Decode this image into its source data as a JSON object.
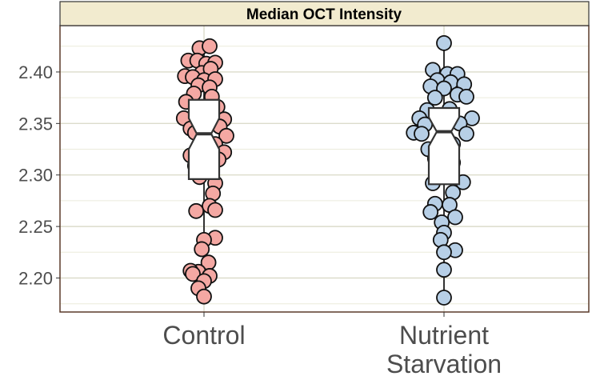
{
  "chart_data": {
    "type": "box_jitter",
    "title": "Median OCT Intensity",
    "xlabel": "",
    "ylabel": "",
    "ylim": [
      2.167,
      2.445
    ],
    "y_ticks": [
      2.2,
      2.25,
      2.3,
      2.35,
      2.4
    ],
    "y_tick_labels": [
      "2.20",
      "2.25",
      "2.30",
      "2.35",
      "2.40"
    ],
    "categories": [
      "Control",
      "Nutrient\nStarvation"
    ],
    "category_lines": [
      [
        "Control"
      ],
      [
        "Nutrient",
        "Starvation"
      ]
    ],
    "grid": true,
    "notched": true,
    "series": [
      {
        "name": "Control",
        "fill": "#f4a8a3",
        "box": {
          "q1": 2.296,
          "median": 2.34,
          "q3": 2.373,
          "whisker_low": 2.181,
          "whisker_high": 2.425,
          "notch_low": 2.325,
          "notch_high": 2.355
        },
        "points": [
          {
            "dx": -0.04,
            "y": 2.423
          },
          {
            "dx": 0.05,
            "y": 2.425
          },
          {
            "dx": -0.14,
            "y": 2.411
          },
          {
            "dx": -0.06,
            "y": 2.411
          },
          {
            "dx": 0.02,
            "y": 2.408
          },
          {
            "dx": 0.1,
            "y": 2.409
          },
          {
            "dx": -0.02,
            "y": 2.399
          },
          {
            "dx": 0.06,
            "y": 2.403
          },
          {
            "dx": -0.17,
            "y": 2.396
          },
          {
            "dx": -0.1,
            "y": 2.395
          },
          {
            "dx": 0.0,
            "y": 2.392
          },
          {
            "dx": 0.1,
            "y": 2.393
          },
          {
            "dx": -0.05,
            "y": 2.387
          },
          {
            "dx": 0.05,
            "y": 2.385
          },
          {
            "dx": -0.09,
            "y": 2.379
          },
          {
            "dx": 0.07,
            "y": 2.376
          },
          {
            "dx": -0.16,
            "y": 2.371
          },
          {
            "dx": 0.12,
            "y": 2.366
          },
          {
            "dx": -0.18,
            "y": 2.355
          },
          {
            "dx": 0.18,
            "y": 2.354
          },
          {
            "dx": -0.12,
            "y": 2.345
          },
          {
            "dx": 0.14,
            "y": 2.347
          },
          {
            "dx": -0.08,
            "y": 2.341
          },
          {
            "dx": 0.2,
            "y": 2.338
          },
          {
            "dx": 0.1,
            "y": 2.33
          },
          {
            "dx": 0.18,
            "y": 2.322
          },
          {
            "dx": -0.12,
            "y": 2.319
          },
          {
            "dx": 0.13,
            "y": 2.315
          },
          {
            "dx": -0.08,
            "y": 2.309
          },
          {
            "dx": -0.04,
            "y": 2.298
          },
          {
            "dx": 0.1,
            "y": 2.292
          },
          {
            "dx": 0.08,
            "y": 2.282
          },
          {
            "dx": 0.05,
            "y": 2.27
          },
          {
            "dx": -0.07,
            "y": 2.265
          },
          {
            "dx": 0.1,
            "y": 2.266
          },
          {
            "dx": 0.1,
            "y": 2.239
          },
          {
            "dx": 0.0,
            "y": 2.237
          },
          {
            "dx": -0.02,
            "y": 2.228
          },
          {
            "dx": 0.04,
            "y": 2.215
          },
          {
            "dx": -0.05,
            "y": 2.206
          },
          {
            "dx": -0.12,
            "y": 2.207
          },
          {
            "dx": 0.05,
            "y": 2.202
          },
          {
            "dx": -0.1,
            "y": 2.204
          },
          {
            "dx": 0.0,
            "y": 2.197
          },
          {
            "dx": -0.05,
            "y": 2.19
          },
          {
            "dx": 0.0,
            "y": 2.182
          }
        ]
      },
      {
        "name": "Nutrient Starvation",
        "fill": "#b7cfe6",
        "box": {
          "q1": 2.291,
          "median": 2.342,
          "q3": 2.365,
          "whisker_low": 2.181,
          "whisker_high": 2.427,
          "notch_low": 2.328,
          "notch_high": 2.356
        },
        "points": [
          {
            "dx": 0.0,
            "y": 2.428
          },
          {
            "dx": -0.1,
            "y": 2.402
          },
          {
            "dx": 0.03,
            "y": 2.398
          },
          {
            "dx": 0.12,
            "y": 2.398
          },
          {
            "dx": -0.06,
            "y": 2.392
          },
          {
            "dx": 0.06,
            "y": 2.39
          },
          {
            "dx": -0.12,
            "y": 2.386
          },
          {
            "dx": 0.18,
            "y": 2.388
          },
          {
            "dx": 0.0,
            "y": 2.384
          },
          {
            "dx": -0.08,
            "y": 2.375
          },
          {
            "dx": 0.12,
            "y": 2.378
          },
          {
            "dx": 0.2,
            "y": 2.376
          },
          {
            "dx": -0.15,
            "y": 2.363
          },
          {
            "dx": 0.05,
            "y": 2.364
          },
          {
            "dx": -0.22,
            "y": 2.355
          },
          {
            "dx": 0.25,
            "y": 2.355
          },
          {
            "dx": -0.17,
            "y": 2.349
          },
          {
            "dx": 0.14,
            "y": 2.35
          },
          {
            "dx": -0.27,
            "y": 2.341
          },
          {
            "dx": -0.2,
            "y": 2.34
          },
          {
            "dx": 0.0,
            "y": 2.344
          },
          {
            "dx": 0.2,
            "y": 2.34
          },
          {
            "dx": 0.08,
            "y": 2.33
          },
          {
            "dx": -0.14,
            "y": 2.325
          },
          {
            "dx": -0.08,
            "y": 2.316
          },
          {
            "dx": 0.08,
            "y": 2.312
          },
          {
            "dx": -0.05,
            "y": 2.302
          },
          {
            "dx": 0.17,
            "y": 2.293
          },
          {
            "dx": -0.1,
            "y": 2.292
          },
          {
            "dx": 0.08,
            "y": 2.283
          },
          {
            "dx": -0.08,
            "y": 2.272
          },
          {
            "dx": 0.05,
            "y": 2.271
          },
          {
            "dx": -0.12,
            "y": 2.264
          },
          {
            "dx": 0.1,
            "y": 2.259
          },
          {
            "dx": -0.02,
            "y": 2.254
          },
          {
            "dx": 0.0,
            "y": 2.244
          },
          {
            "dx": -0.03,
            "y": 2.237
          },
          {
            "dx": 0.1,
            "y": 2.227
          },
          {
            "dx": 0.0,
            "y": 2.225
          },
          {
            "dx": 0.0,
            "y": 2.208
          },
          {
            "dx": 0.0,
            "y": 2.181
          }
        ]
      }
    ]
  }
}
